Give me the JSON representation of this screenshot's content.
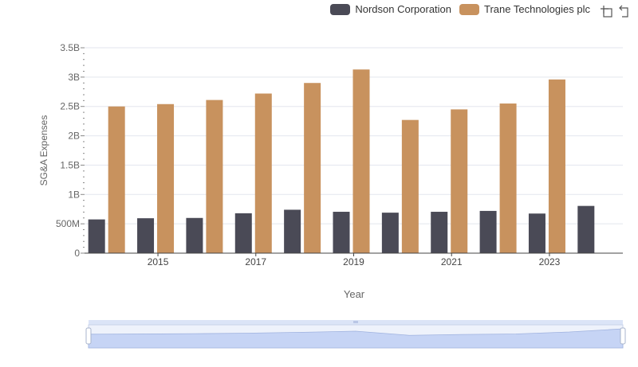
{
  "legend": {
    "items": [
      {
        "label": "Nordson Corporation",
        "color": "#4a4a56"
      },
      {
        "label": "Trane Technologies plc",
        "color": "#c8925e"
      }
    ]
  },
  "toolbar": {
    "icons": [
      "zoom-select-icon",
      "zoom-reset-icon"
    ]
  },
  "chart_data": {
    "type": "bar",
    "xlabel": "Year",
    "ylabel": "SG&A Expenses",
    "categories": [
      "2014",
      "2015",
      "2016",
      "2017",
      "2018",
      "2019",
      "2020",
      "2021",
      "2022",
      "2023",
      "2024"
    ],
    "x_tick_labels": [
      "2015",
      "2017",
      "2019",
      "2021",
      "2023"
    ],
    "y_tick_labels": [
      "0",
      "500M",
      "1B",
      "1.5B",
      "2B",
      "2.5B",
      "3B",
      "3.5B"
    ],
    "ylim": [
      0,
      3500000000
    ],
    "grid": true,
    "legend_position": "top-right",
    "series": [
      {
        "name": "Nordson Corporation",
        "color": "#4a4a56",
        "values": [
          575000000,
          595000000,
          600000000,
          680000000,
          740000000,
          705000000,
          690000000,
          705000000,
          720000000,
          675000000,
          805000000
        ]
      },
      {
        "name": "Trane Technologies plc",
        "color": "#c8925e",
        "values": [
          2500000000,
          2540000000,
          2610000000,
          2720000000,
          2900000000,
          3130000000,
          2270000000,
          2450000000,
          2550000000,
          2960000000,
          null
        ]
      }
    ]
  }
}
